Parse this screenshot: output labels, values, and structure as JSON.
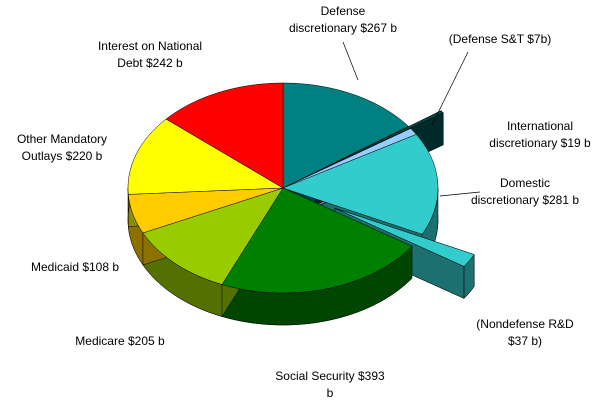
{
  "chart_data": {
    "type": "pie",
    "categories": [
      "Defense discretionary",
      "Defense S&T",
      "International discretionary",
      "Domestic discretionary",
      "Nondefense R&D",
      "Social Security",
      "Medicare",
      "Medicaid",
      "Other Mandatory Outlays",
      "Interest on National Debt"
    ],
    "labels": [
      [
        "Defense",
        "discretionary $267 b"
      ],
      [
        "(Defense S&T  $7b)"
      ],
      [
        "International",
        "discretionary $19 b"
      ],
      [
        "Domestic",
        "discretionary $281 b"
      ],
      [
        "(Nondefense R&D",
        "$37 b)"
      ],
      [
        "Social Security $393",
        "b"
      ],
      [
        "Medicare $205 b"
      ],
      [
        "Medicaid $108 b"
      ],
      [
        "Other  Mandatory",
        "Outlays $220 b"
      ],
      [
        "Interest on National",
        "Debt $242 b"
      ]
    ],
    "values": [
      267,
      7,
      19,
      281,
      37,
      393,
      205,
      108,
      220,
      242
    ],
    "colors": [
      "#008080",
      "#004a4a",
      "#99ccff",
      "#33cccc",
      "#33cccc",
      "#008000",
      "#99cc00",
      "#ffcc00",
      "#ffff00",
      "#ff0000"
    ],
    "exploded": [
      false,
      true,
      false,
      false,
      true,
      false,
      false,
      false,
      false,
      false
    ]
  }
}
